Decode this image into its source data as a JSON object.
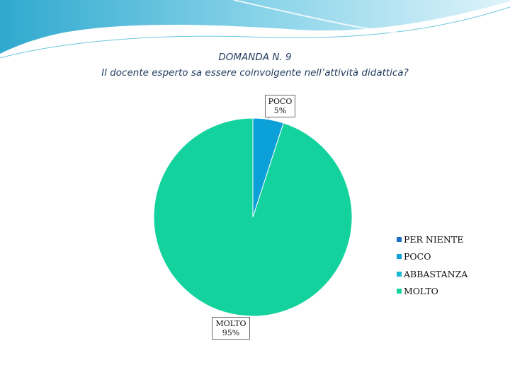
{
  "title": {
    "line1": "DOMANDA N. 9",
    "line2": "Il docente esperto sa essere coinvolgente nell’attività didattica?"
  },
  "colors": {
    "per_niente": "#1a6fc4",
    "poco": "#0ba0d8",
    "abbastanza": "#14b8d0",
    "molto": "#13d29d",
    "banner": "#3fb6d6"
  },
  "chart_data": {
    "type": "pie",
    "title": "DOMANDA N. 9 — Il docente esperto sa essere coinvolgente nell’attività didattica?",
    "categories": [
      "PER NIENTE",
      "POCO",
      "ABBASTANZA",
      "MOLTO"
    ],
    "values": [
      0,
      5,
      0,
      95
    ],
    "unit": "%",
    "data_labels": [
      {
        "category": "POCO",
        "label": "POCO",
        "value_text": "5%"
      },
      {
        "category": "MOLTO",
        "label": "MOLTO",
        "value_text": "95%"
      }
    ],
    "legend_position": "right"
  }
}
